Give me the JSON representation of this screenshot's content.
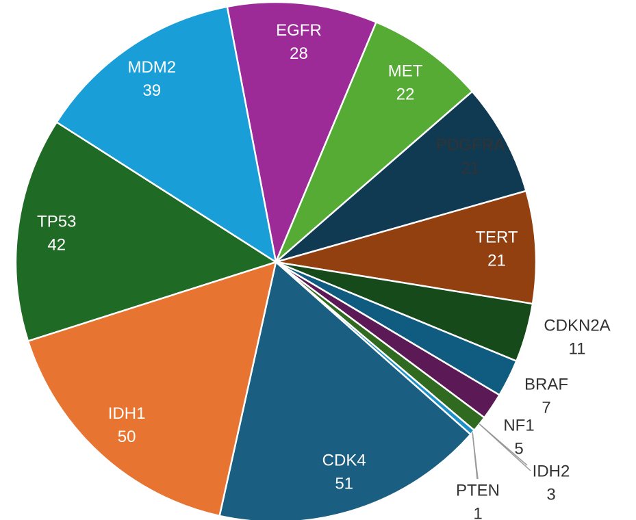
{
  "chart_data": {
    "type": "pie",
    "categories": [
      "EGFR",
      "MET",
      "PDGFRA",
      "TERT",
      "CDKN2A",
      "BRAF",
      "NF1",
      "IDH2",
      "PTEN",
      "CDK4",
      "IDH1",
      "TP53",
      "MDM2"
    ],
    "values": [
      28,
      22,
      21,
      21,
      11,
      7,
      5,
      3,
      1,
      51,
      50,
      42,
      39
    ],
    "colors": [
      "#9c2a97",
      "#55ab33",
      "#0f3a52",
      "#934010",
      "#164a1b",
      "#0f5c80",
      "#5b1a56",
      "#2f6a20",
      "#1e90c9",
      "#1a5e82",
      "#e87432",
      "#1f6b25",
      "#1a9ed8"
    ]
  }
}
